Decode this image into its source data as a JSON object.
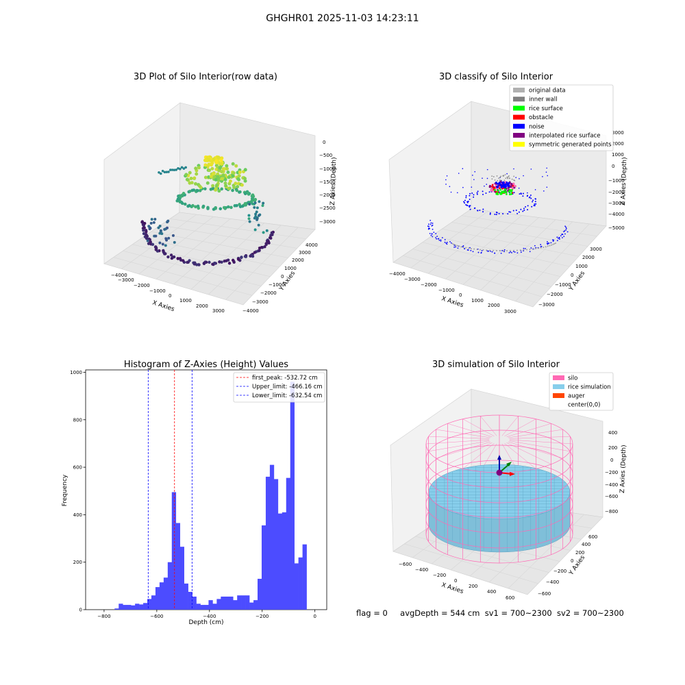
{
  "figure": {
    "suptitle": "GHGHR01 2025-11-03 14:23:11"
  },
  "status_line": {
    "flag": "flag = 0",
    "avg_depth": "avgDepth = 544 cm",
    "sv1": "sv1 = 700~2300",
    "sv2": "sv2 = 700~2300"
  },
  "colors": {
    "hist_bar": "#4c4cff",
    "peak_line": "#ff0000",
    "limit_line": "#0000ff",
    "silo": "#ff69b4",
    "rice_simulation": "#87ceeb",
    "auger": "#ff4500",
    "pane": "#f2f2f2",
    "grid": "#d9d9d9"
  },
  "chart_data": [
    {
      "type": "scatter",
      "subtype": "3d-scatter",
      "title": "3D Plot of Silo Interior(row data)",
      "xlabel": "X Axies",
      "ylabel": "Y Axies",
      "zlabel": "Z Axies (Depth)",
      "x_ticks": [
        "−4000",
        "−3000",
        "−2000",
        "−1000",
        "0",
        "1000",
        "2000",
        "3000"
      ],
      "y_ticks": [
        "−4000",
        "−3000",
        "−2000",
        "−1000",
        "0",
        "1000",
        "2000",
        "3000",
        "4000"
      ],
      "z_ticks": [
        "−3000",
        "−2500",
        "−2000",
        "−1500",
        "−1000",
        "−500",
        "0"
      ],
      "colormap": "viridis"
    },
    {
      "type": "scatter",
      "subtype": "3d-scatter",
      "title": "3D classify of Silo Interior",
      "xlabel": "X Axies",
      "ylabel": "Y Axies",
      "zlabel": "Z Axies (Depth)",
      "x_ticks": [
        "−4000",
        "−3000",
        "−2000",
        "−1000",
        "0",
        "1000",
        "2000",
        "3000"
      ],
      "y_ticks": [
        "−3000",
        "−2000",
        "−1000",
        "0",
        "1000",
        "2000",
        "3000"
      ],
      "z_ticks": [
        "−5000",
        "−4000",
        "−3000",
        "−2000",
        "−1000",
        "0",
        "1000",
        "2000",
        "3000"
      ],
      "legend": [
        {
          "label": "original data",
          "color": "#b0b0b0"
        },
        {
          "label": "inner wall",
          "color": "#808080"
        },
        {
          "label": "rice surface",
          "color": "#00ff00"
        },
        {
          "label": "obstacle",
          "color": "#ff0000"
        },
        {
          "label": "noise",
          "color": "#0000ff"
        },
        {
          "label": "interpolated rice surface",
          "color": "#800080"
        },
        {
          "label": "symmetric generated points",
          "color": "#ffff00"
        }
      ],
      "legend_position": "top-right"
    },
    {
      "type": "bar",
      "subtype": "histogram",
      "title": "Histogram of Z-Axies (Height) Values",
      "xlabel": "Depth (cm)",
      "ylabel": "Frequency",
      "xlim": [
        -870,
        45
      ],
      "ylim": [
        0,
        1010
      ],
      "x_ticks": [
        -800,
        -600,
        -400,
        -200,
        0
      ],
      "y_ticks": [
        0,
        200,
        400,
        600,
        800,
        1000
      ],
      "bin_start": -760,
      "bin_width": 15.5,
      "values": [
        5,
        25,
        20,
        20,
        18,
        25,
        22,
        28,
        45,
        60,
        95,
        115,
        135,
        200,
        495,
        365,
        265,
        110,
        75,
        55,
        25,
        20,
        20,
        40,
        25,
        45,
        55,
        55,
        55,
        40,
        60,
        60,
        60,
        30,
        40,
        130,
        355,
        560,
        610,
        550,
        405,
        410,
        555,
        960,
        195,
        220,
        275
      ],
      "vlines": [
        {
          "label": "first_peak: -532.72 cm",
          "x": -532.72,
          "color": "#ff0000"
        },
        {
          "label": "Upper_limit: -466.16 cm",
          "x": -466.16,
          "color": "#0000ff"
        },
        {
          "label": "Lower_limit: -632.54 cm",
          "x": -632.54,
          "color": "#0000ff"
        }
      ],
      "legend_position": "top-right"
    },
    {
      "type": "area",
      "subtype": "3d-surface",
      "title": "3D simulation of Silo Interior",
      "xlabel": "X Axies",
      "ylabel": "Y Axies",
      "zlabel": "Z Axies (Depth)",
      "x_ticks": [
        "−600",
        "−400",
        "−200",
        "0",
        "200",
        "400",
        "600"
      ],
      "y_ticks": [
        "−600",
        "−400",
        "−200",
        "0",
        "200",
        "400",
        "600"
      ],
      "z_ticks": [
        "−800",
        "−600",
        "−400",
        "−200",
        "0",
        "200",
        "400"
      ],
      "legend": [
        {
          "label": "silo",
          "color": "#ff69b4"
        },
        {
          "label": "rice simulation",
          "color": "#87ceeb"
        },
        {
          "label": "auger",
          "color": "#ff4500"
        },
        {
          "label": "center(0,0)",
          "color": ""
        }
      ],
      "legend_position": "top-right"
    }
  ]
}
